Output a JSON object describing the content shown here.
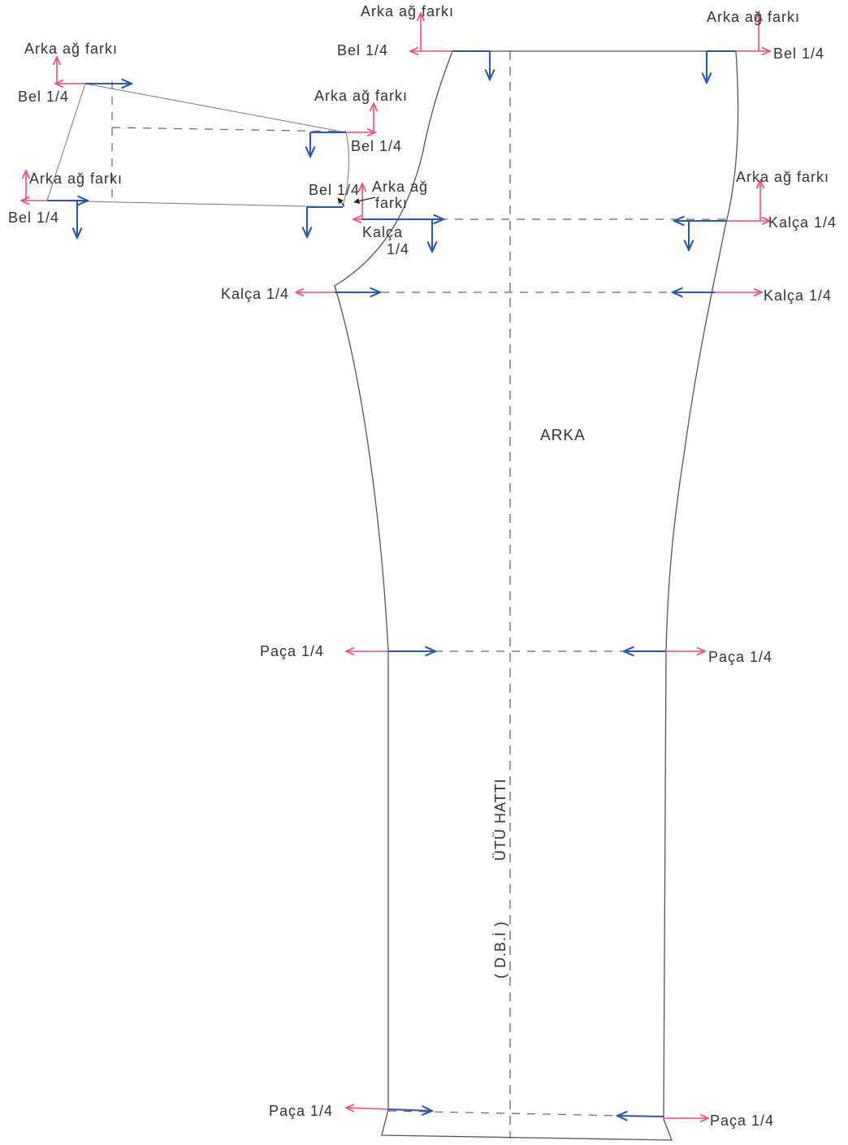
{
  "colors": {
    "outline": "#555555",
    "pink_arrow": "#ee4a86",
    "blue_arrow": "#2a56b0"
  },
  "piece": {
    "title": "ARKA",
    "grain_line": "ÜTÜ HATTI",
    "grain_note": "( D.B.İ )"
  },
  "labels": {
    "back_diff": "Arka ağ farkı",
    "back_diff_split_1": "Arka ağ",
    "back_diff_split_2": "farkı",
    "waist_1": "Bel 1/4",
    "waist_2": "Bel 1/4",
    "waist_3": "Bel 1/4",
    "waist_4": "Bel 1/4",
    "waist_5": "Bel 1/4",
    "waist_6": "Bel 1/4",
    "waist_7": "Bel 1/4",
    "hip_1": "Kalça 1/4",
    "hip_2": "Kalça 1/4",
    "hip_3": "Kalça 1/4",
    "hip_4_line1": "Kalça",
    "hip_4_line2": "1/4",
    "hem_1": "Paça 1/4",
    "hem_2": "Paça  1/4",
    "hem_3": "Paça 1/4",
    "hem_4": "Paça  1/4"
  }
}
